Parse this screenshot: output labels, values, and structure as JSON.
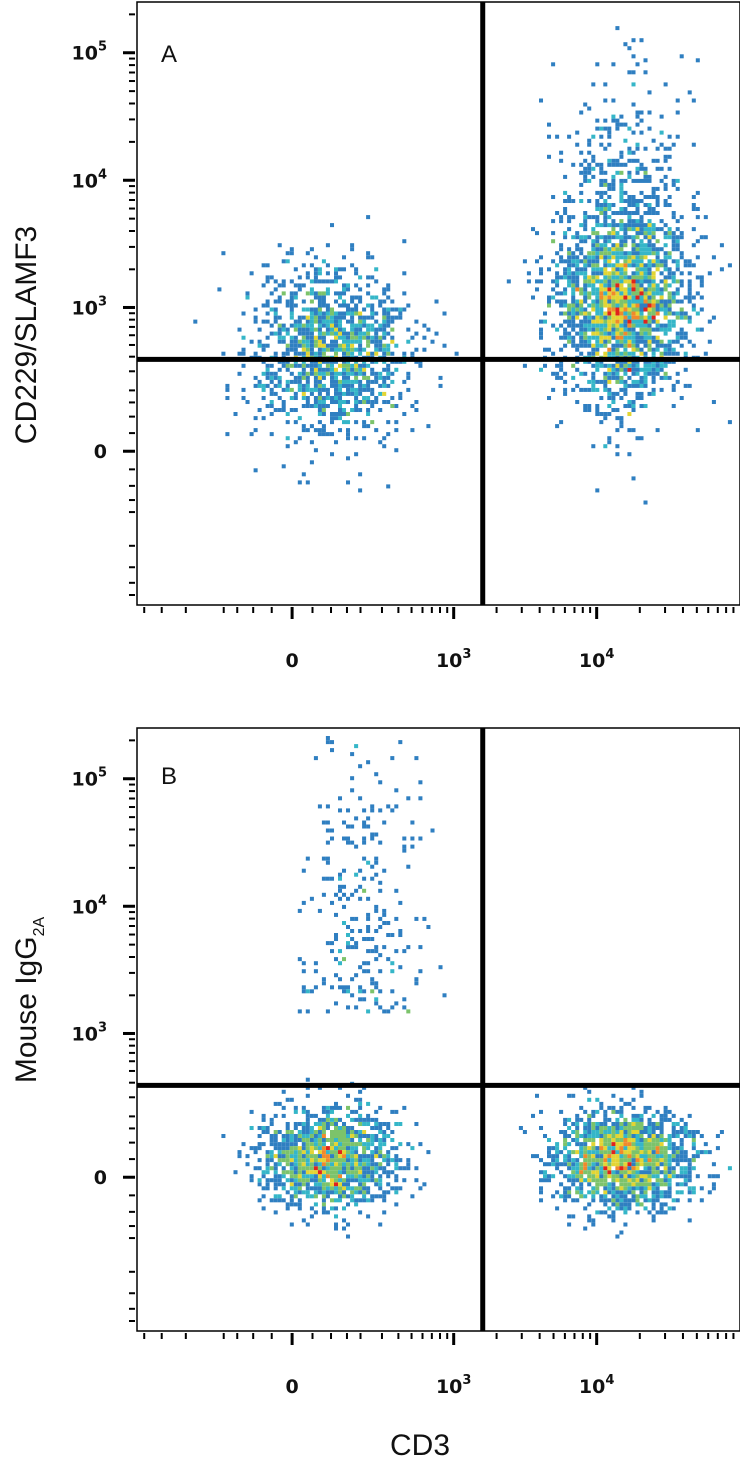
{
  "chart_data": [
    {
      "type": "scatter",
      "panel_label": "A",
      "xlabel": "",
      "ylabel": "CD229/SLAMF3",
      "x_scale": "biexponential",
      "y_scale": "biexponential",
      "x_ticks": [
        {
          "value": 0,
          "base": "0",
          "exp": ""
        },
        {
          "value": 1000,
          "base": "10",
          "exp": "3"
        },
        {
          "value": 10000,
          "base": "10",
          "exp": "4"
        }
      ],
      "y_ticks": [
        {
          "value": 0,
          "base": "0",
          "exp": ""
        },
        {
          "value": 1000,
          "base": "10",
          "exp": "3"
        },
        {
          "value": 10000,
          "base": "10",
          "exp": "4"
        },
        {
          "value": 100000,
          "base": "10",
          "exp": "5"
        }
      ],
      "quadrant_gates": {
        "x": 1600,
        "y": 380
      },
      "populations": [
        {
          "name": "",
          "center": {
            "x": 100,
            "y": 450
          },
          "spread": "broad",
          "events": 1300,
          "peak_color": "green"
        },
        {
          "name": "",
          "center": {
            "x": 15000,
            "y": 800
          },
          "spread": "broad, elongated upward to ~10^4",
          "events": 2600,
          "peak_color": "red"
        }
      ],
      "density_colors": [
        "#2b3f9c",
        "#2f7fc1",
        "#35b6c8",
        "#7cc36b",
        "#e2d534",
        "#f08a2c",
        "#e0231c"
      ]
    },
    {
      "type": "scatter",
      "panel_label": "B",
      "xlabel": "CD3",
      "ylabel": "Mouse IgG",
      "ylabel_subscript": "2A",
      "x_scale": "biexponential",
      "y_scale": "biexponential",
      "x_ticks": [
        {
          "value": 0,
          "base": "0",
          "exp": ""
        },
        {
          "value": 1000,
          "base": "10",
          "exp": "3"
        },
        {
          "value": 10000,
          "base": "10",
          "exp": "4"
        }
      ],
      "y_ticks": [
        {
          "value": 0,
          "base": "0",
          "exp": ""
        },
        {
          "value": 1000,
          "base": "10",
          "exp": "3"
        },
        {
          "value": 10000,
          "base": "10",
          "exp": "4"
        },
        {
          "value": 100000,
          "base": "10",
          "exp": "5"
        }
      ],
      "quadrant_gates": {
        "x": 1600,
        "y": 380
      },
      "populations": [
        {
          "name": "",
          "center": {
            "x": 100,
            "y": 50
          },
          "spread": "compact",
          "events": 1400,
          "peak_color": "cyan"
        },
        {
          "name": "",
          "center": {
            "x": 15000,
            "y": 50
          },
          "spread": "compact",
          "events": 1700,
          "peak_color": "red"
        },
        {
          "name": "",
          "center": {
            "x": 200,
            "y": 2000
          },
          "spread": "sparse streak up to ~10^5",
          "events": 280,
          "peak_color": "blue"
        }
      ],
      "density_colors": [
        "#2b3f9c",
        "#2f7fc1",
        "#35b6c8",
        "#7cc36b",
        "#e2d534",
        "#f08a2c",
        "#e0231c"
      ]
    }
  ]
}
